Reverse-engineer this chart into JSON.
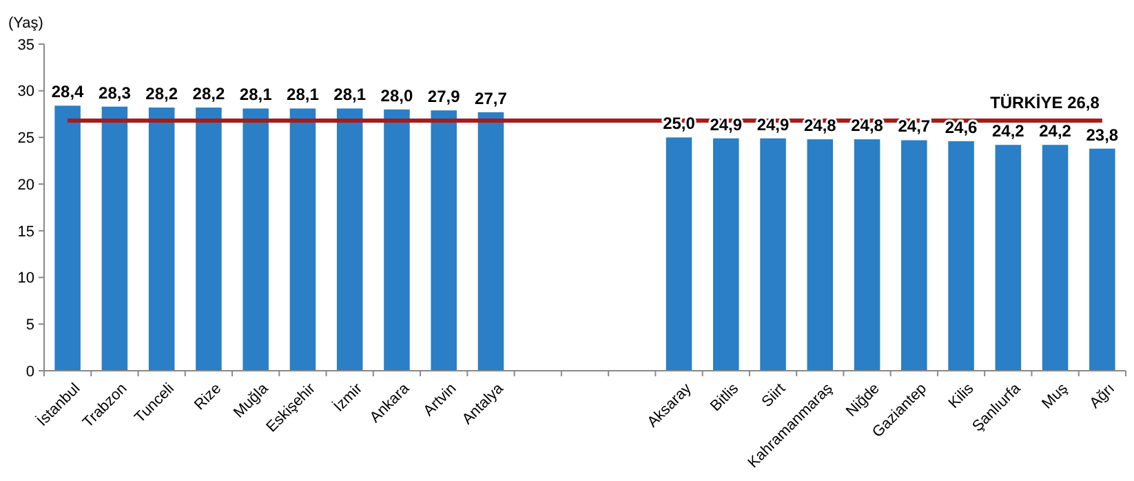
{
  "chart_data": {
    "type": "bar",
    "ylabel": "(Yaş)",
    "categories": [
      "İstanbul",
      "Trabzon",
      "Tunceli",
      "Rize",
      "Muğla",
      "Eskişehir",
      "İzmir",
      "Ankara",
      "Artvin",
      "Antalya",
      null,
      null,
      null,
      "Aksaray",
      "Bitlis",
      "Siirt",
      "Kahramanmaraş",
      "Niğde",
      "Gaziantep",
      "Kilis",
      "Şanlıurfa",
      "Muş",
      "Ağrı"
    ],
    "values": [
      28.4,
      28.3,
      28.2,
      28.2,
      28.1,
      28.1,
      28.1,
      28.0,
      27.9,
      27.7,
      null,
      null,
      null,
      25.0,
      24.9,
      24.9,
      24.8,
      24.8,
      24.7,
      24.6,
      24.2,
      24.2,
      23.8
    ],
    "value_labels": [
      "28,4",
      "28,3",
      "28,2",
      "28,2",
      "28,1",
      "28,1",
      "28,1",
      "28,0",
      "27,9",
      "27,7",
      null,
      null,
      null,
      "25,0",
      "24,9",
      "24,9",
      "24,8",
      "24,8",
      "24,7",
      "24,6",
      "24,2",
      "24,2",
      "23,8"
    ],
    "color": "#2a7fc6",
    "ylim": [
      0,
      35
    ],
    "yticks": [
      0,
      5,
      10,
      15,
      20,
      25,
      30,
      35
    ],
    "grid": false,
    "ref_lines": [
      {
        "axis": "y",
        "value": 26.8,
        "label": "TÜRKİYE 26,8",
        "color": "#a51c1c",
        "line_style": "solid"
      }
    ]
  }
}
